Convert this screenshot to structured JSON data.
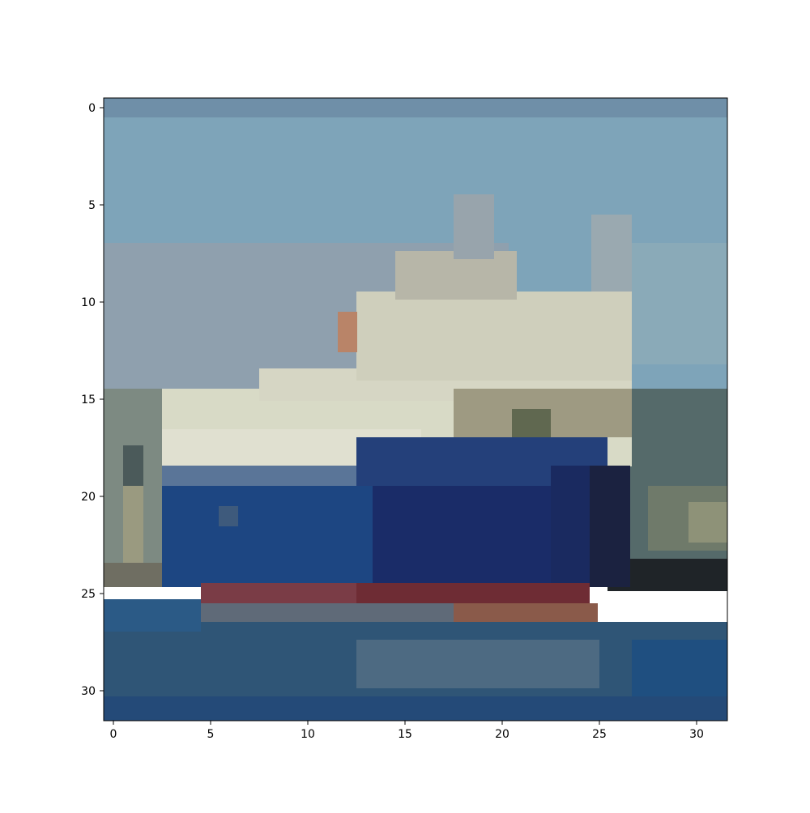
{
  "figure": {
    "image_size": [
      32,
      32
    ],
    "subject": "ship",
    "x_ticks": [
      "0",
      "5",
      "10",
      "15",
      "20",
      "25",
      "30"
    ],
    "y_ticks": [
      "0",
      "5",
      "10",
      "15",
      "20",
      "25",
      "30"
    ],
    "colors": {
      "sky": "#7ba2b8",
      "superstructure": "#d8dac8",
      "hull_blue": "#1d3f7a",
      "hull_stripe": "#7a3a40",
      "water": "#2f5778",
      "axes": "#000000",
      "background": "#ffffff"
    }
  }
}
